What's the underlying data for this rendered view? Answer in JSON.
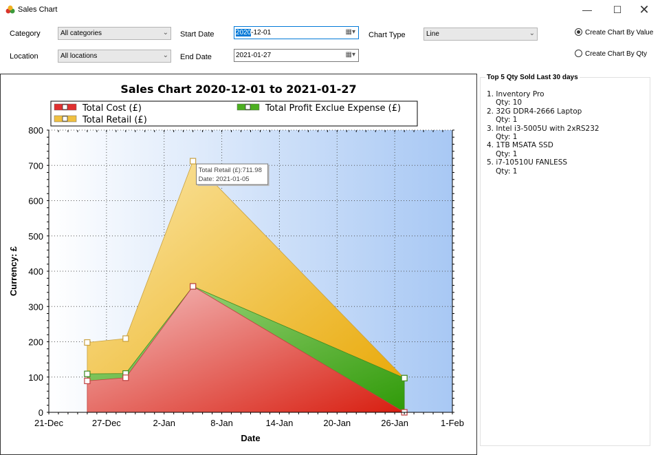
{
  "window": {
    "title": "Sales Chart",
    "min_glyph": "—",
    "max_glyph": "☐",
    "close_glyph": "✕"
  },
  "filters": {
    "category_label": "Category",
    "category_value": "All categories",
    "location_label": "Location",
    "location_value": "All locations",
    "start_date_label": "Start Date",
    "start_date_selected": "2020",
    "start_date_rest": "-12-01",
    "end_date_label": "End Date",
    "end_date_value": "2021-01-27",
    "chart_type_label": "Chart Type",
    "chart_type_value": "Line"
  },
  "options": {
    "by_value_label": "Create Chart By Value",
    "by_qty_label": "Create Chart By Qty",
    "selected": "by_value"
  },
  "top_panel": {
    "title": "Top 5 Qty Sold Last 30 days",
    "items": [
      {
        "name": "1. Inventory Pro",
        "qty": "Qty: 10"
      },
      {
        "name": "2. 32G DDR4-2666 Laptop",
        "qty": "Qty: 1"
      },
      {
        "name": "3. Intel i3-5005U with 2xRS232",
        "qty": "Qty: 1"
      },
      {
        "name": "4. 1TB MSATA SSD",
        "qty": "Qty: 1"
      },
      {
        "name": "5. i7-10510U FANLESS",
        "qty": "Qty: 1"
      }
    ]
  },
  "chart_data": {
    "type": "area",
    "title": "Sales Chart 2020-12-01 to 2021-01-27",
    "xlabel": "Date",
    "ylabel": "Currency: £",
    "ylim": [
      0,
      800
    ],
    "yticks": [
      0,
      100,
      200,
      300,
      400,
      500,
      600,
      700,
      800
    ],
    "xlim": [
      "2020-12-21",
      "2021-02-01"
    ],
    "xticks": [
      "2020-12-21",
      "2020-12-27",
      "2021-01-02",
      "2021-01-08",
      "2021-01-14",
      "2021-01-20",
      "2021-01-26",
      "2021-02-01"
    ],
    "xtick_labels": [
      "21-Dec",
      "27-Dec",
      "2-Jan",
      "8-Jan",
      "14-Jan",
      "20-Jan",
      "26-Jan",
      "1-Feb"
    ],
    "x": [
      "2020-12-25",
      "2020-12-29",
      "2021-01-05",
      "2021-01-27"
    ],
    "series": [
      {
        "name": "Total Retail (£)",
        "values": [
          198,
          209,
          711.98,
          97
        ],
        "color": "#f0c040"
      },
      {
        "name": "Total Profit Exclue Expense (£)",
        "values": [
          109,
          110,
          357,
          97
        ],
        "color": "#4caf20"
      },
      {
        "name": "Total Cost (£)",
        "values": [
          89,
          98,
          357,
          0
        ],
        "color": "#e03030"
      }
    ],
    "legend": [
      {
        "name": "Total Cost (£)",
        "color": "#e03030"
      },
      {
        "name": "Total Profit Exclue Expense (£)",
        "color": "#4caf20"
      },
      {
        "name": "Total Retail (£)",
        "color": "#f0c040"
      }
    ],
    "legend_position": "top",
    "grid": true,
    "tooltip": {
      "line1": "Total Retail (£):711.98",
      "line2": "Date: 2021-01-05"
    }
  }
}
